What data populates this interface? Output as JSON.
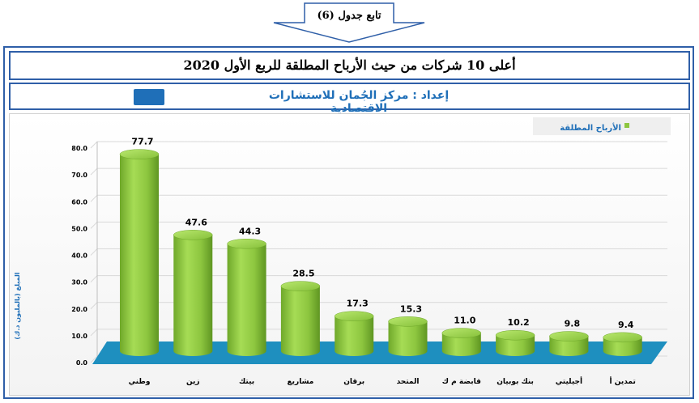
{
  "header": {
    "continuation_label": "تابع جدول (6)"
  },
  "title": "أعلى 10 شركات من حيث الأرباح المطلقة للربع الأول 2020",
  "source": {
    "label": "إعداد : مركز الجُمان للاستشارات الاقتصادية"
  },
  "colors": {
    "bar": "#8dc63f",
    "floor": "#1e8fbf",
    "border": "#2f5fa8",
    "accent": "#1f6fb8"
  },
  "chart_data": {
    "type": "bar",
    "categories": [
      "وطني",
      "زين",
      "بيتك",
      "مشاريع",
      "برقان",
      "المتحد",
      "قابضة م ك",
      "بنك بوبيان",
      "أجيليتي",
      "تمدين أ"
    ],
    "series": [
      {
        "name": "الأرباح المطلقة",
        "values": [
          77.7,
          47.6,
          44.3,
          28.5,
          17.3,
          15.3,
          11.0,
          10.2,
          9.8,
          9.4
        ]
      }
    ],
    "data_labels": [
      "77.7",
      "47.6",
      "44.3",
      "28.5",
      "17.3",
      "15.3",
      "11.0",
      "10.2",
      "9.8",
      "9.4"
    ],
    "ylabel": "المبلغ (بالمليون د.ك)",
    "ylim": [
      0,
      80
    ],
    "yticks": [
      "0.0",
      "10.0",
      "20.0",
      "30.0",
      "40.0",
      "50.0",
      "60.0",
      "70.0",
      "80.0"
    ],
    "legend_position": "top-right",
    "grid": true
  }
}
